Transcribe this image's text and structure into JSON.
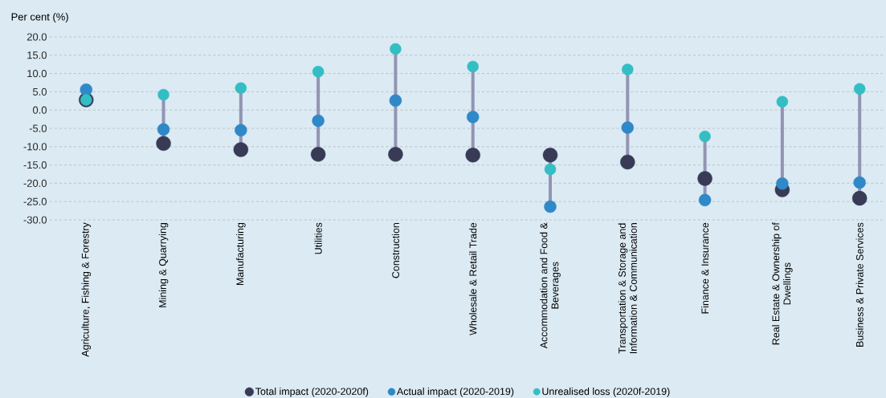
{
  "chart_data": {
    "type": "scatter",
    "ylabel": "Per cent (%)",
    "categories": [
      "Agriculture, Fishing & Forestry",
      "Mining & Quarrying",
      "Manufacturing",
      "Utilities",
      "Construction",
      "Wholesale & Retail Trade",
      "Accommodation and Food & Beverages",
      "Transportation & Storage and Information & Communication",
      "Finance & Insurance",
      "Real Estate  & Ownership of Dwellings",
      "Business & Private Services"
    ],
    "series": [
      {
        "name": "Total impact (2020-2020f)",
        "color": "#383a56",
        "values": [
          2.8,
          -9.1,
          -10.8,
          -12.1,
          -12.1,
          -12.3,
          -12.3,
          -14.2,
          -18.7,
          -21.8,
          -24.1
        ]
      },
      {
        "name": "Actual impact (2020-2019)",
        "color": "#2f88c8",
        "values": [
          5.6,
          -5.3,
          -5.5,
          -2.9,
          2.6,
          -1.9,
          -26.4,
          -4.8,
          -24.6,
          -20.1,
          -19.8
        ]
      },
      {
        "name": "Unrealised loss (2020f-2019)",
        "color": "#33bec3",
        "values": [
          2.8,
          4.2,
          6.0,
          10.5,
          16.7,
          11.9,
          -16.2,
          11.1,
          -7.2,
          2.3,
          5.8
        ]
      }
    ],
    "ylim": [
      -30,
      20
    ],
    "yticks": [
      {
        "value": 20,
        "label": "20.0"
      },
      {
        "value": 15,
        "label": "15.0"
      },
      {
        "value": 10,
        "label": "10.0"
      },
      {
        "value": 5,
        "label": "5.0"
      },
      {
        "value": 0,
        "label": "0.0"
      },
      {
        "value": -5,
        "label": "-5.0"
      },
      {
        "value": -10,
        "label": "-10.0"
      },
      {
        "value": -15,
        "label": "-15.0"
      },
      {
        "value": -20,
        "label": "-20.0"
      },
      {
        "value": -25,
        "label": "-25.0"
      },
      {
        "value": -30,
        "label": "-30.0"
      }
    ],
    "grid": "y",
    "legend": "bottom"
  }
}
